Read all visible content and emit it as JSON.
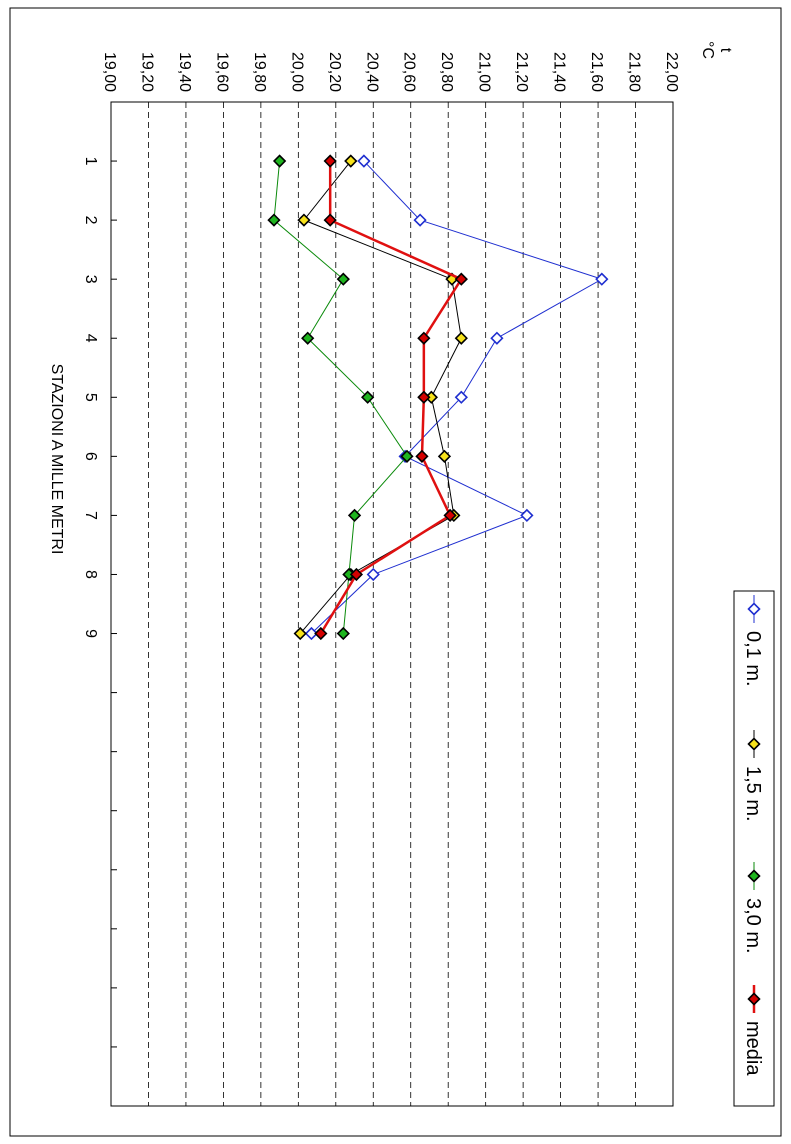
{
  "chart_data": {
    "type": "line",
    "title": "",
    "ylabel": "t °C",
    "ylabel_parts": [
      "t",
      "°C"
    ],
    "xlabel": "STAZIONI A MILLE METRI",
    "x": [
      1,
      2,
      3,
      4,
      5,
      6,
      7,
      8,
      9
    ],
    "xlim": [
      0,
      17
    ],
    "ylim": [
      19.0,
      22.0
    ],
    "ytick_labels": [
      "19,00",
      "19,20",
      "19,40",
      "19,60",
      "19,80",
      "20,00",
      "20,20",
      "20,40",
      "20,60",
      "20,80",
      "21,00",
      "21,20",
      "21,40",
      "21,60",
      "21,80",
      "22,00"
    ],
    "xtick_labels": [
      "1",
      "2",
      "3",
      "4",
      "5",
      "6",
      "7",
      "8",
      "9"
    ],
    "grid": true,
    "grid_style": "dashed",
    "orientation": "rotated 90° clockwise",
    "legend_position": "top-right",
    "series": [
      {
        "name": "0,1 m.",
        "color": "#1f2fd0",
        "marker_fill": "#ffffff",
        "line_width": 1,
        "values": [
          20.35,
          20.65,
          21.62,
          21.06,
          20.87,
          20.57,
          21.22,
          20.4,
          20.07
        ]
      },
      {
        "name": "1,5 m.",
        "color": "#000000",
        "marker_fill": "#f7e21b",
        "line_width": 1,
        "values": [
          20.28,
          20.03,
          20.82,
          20.87,
          20.71,
          20.78,
          20.83,
          20.28,
          20.01
        ]
      },
      {
        "name": "3,0 m.",
        "color": "#0a8a0a",
        "marker_fill": "#1fb51f",
        "line_width": 1,
        "values": [
          19.9,
          19.87,
          20.24,
          20.05,
          20.37,
          20.58,
          20.3,
          20.27,
          20.24
        ]
      },
      {
        "name": "media",
        "color": "#e01010",
        "marker_fill": "#d40000",
        "line_width": 2.5,
        "values": [
          20.17,
          20.17,
          20.87,
          20.67,
          20.67,
          20.66,
          20.81,
          20.31,
          20.12
        ]
      }
    ]
  }
}
